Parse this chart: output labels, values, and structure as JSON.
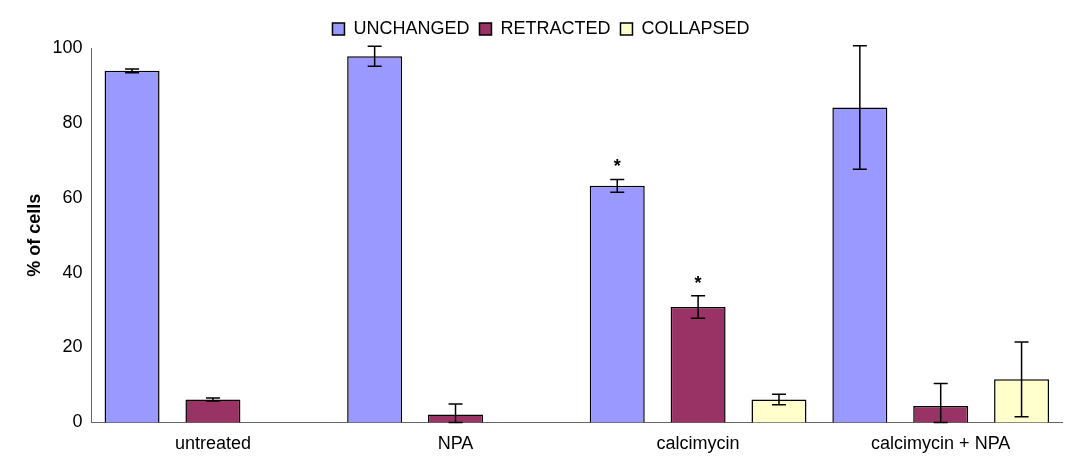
{
  "chart_data": {
    "type": "bar",
    "ylabel": "% of cells",
    "categories": [
      "untreated",
      "NPA",
      "calcimycin",
      "calcimycin + NPA"
    ],
    "series": [
      {
        "name": "UNCHANGED",
        "color": "#9999ff",
        "values": [
          93.9,
          97.8,
          63.2,
          84.1
        ],
        "errors": [
          0.5,
          2.7,
          1.7,
          16.5
        ],
        "value_labels": [
          null,
          null,
          "*",
          null
        ]
      },
      {
        "name": "RETRACTED",
        "color": "#993366",
        "values": [
          6.1,
          2.1,
          30.8,
          4.4
        ],
        "errors": [
          0.4,
          [
            0,
            4.9
          ],
          3,
          [
            0,
            10.4
          ]
        ],
        "value_labels": [
          null,
          null,
          "*",
          null
        ]
      },
      {
        "name": "COLLAPSED",
        "color": "#ffffcc",
        "values": [
          0,
          0,
          6.1,
          11.5
        ],
        "errors": [
          null,
          null,
          1.4,
          10
        ]
      }
    ],
    "ylim": [
      0,
      100
    ],
    "yticks": [
      0,
      20,
      40,
      60,
      80,
      100
    ],
    "grid": false,
    "legend": "top"
  }
}
